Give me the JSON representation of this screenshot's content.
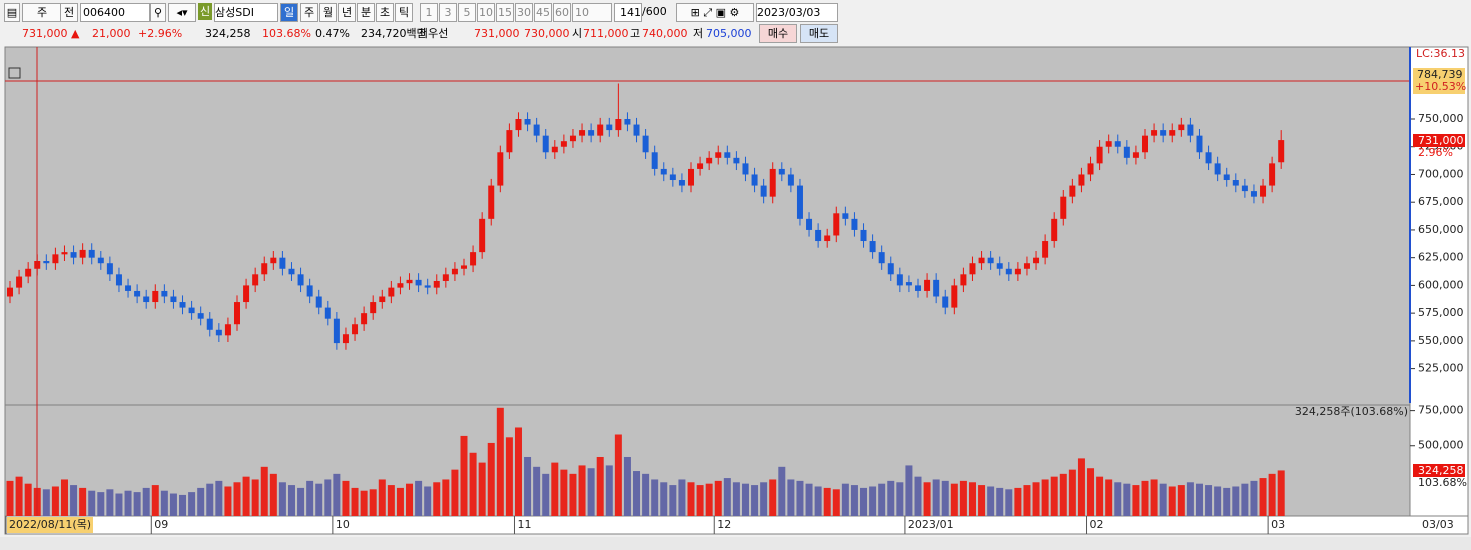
{
  "toolbar": {
    "row1": [
      "주",
      "전",
      "006400",
      "삼성SDI",
      "일",
      "주",
      "월",
      "년",
      "분",
      "초",
      "틱",
      "1",
      "3",
      "5",
      "10",
      "15",
      "30",
      "45",
      "60",
      "10",
      "141",
      "/600",
      "2023/03/03"
    ],
    "row2": [
      "731,000 ▲",
      "21,000",
      "+2.96%",
      "324,258",
      "103.68%",
      "0.47%",
      "234,720백만",
      "최우선",
      "731,000",
      "730,000",
      "시",
      "711,000",
      "고",
      "740,000",
      "저",
      "705,000",
      "매수",
      "매도"
    ]
  },
  "chart_data": {
    "type": "candlestick",
    "categories": [
      "2022/08/11(목)",
      null,
      null,
      null,
      null,
      null,
      null,
      null,
      null,
      null,
      null,
      null,
      null,
      null,
      null,
      null,
      "09",
      null,
      null,
      null,
      null,
      null,
      null,
      null,
      null,
      null,
      null,
      null,
      null,
      null,
      null,
      null,
      null,
      null,
      null,
      null,
      "10",
      null,
      null,
      null,
      null,
      null,
      null,
      null,
      null,
      null,
      null,
      null,
      null,
      null,
      null,
      null,
      null,
      null,
      null,
      null,
      "11",
      null,
      null,
      null,
      null,
      null,
      null,
      null,
      null,
      null,
      null,
      null,
      null,
      null,
      null,
      null,
      null,
      null,
      null,
      null,
      null,
      null,
      "12",
      null,
      null,
      null,
      null,
      null,
      null,
      null,
      null,
      null,
      null,
      null,
      null,
      null,
      null,
      null,
      null,
      null,
      null,
      null,
      null,
      "2023/01",
      null,
      null,
      null,
      null,
      null,
      null,
      null,
      null,
      null,
      null,
      null,
      null,
      null,
      null,
      null,
      null,
      null,
      null,
      null,
      "02",
      null,
      null,
      null,
      null,
      null,
      null,
      null,
      null,
      null,
      null,
      null,
      null,
      null,
      null,
      null,
      null,
      null,
      null,
      null,
      "03",
      null
    ],
    "series": [
      {
        "open": [
          590000,
          598000,
          608000,
          615000,
          622000,
          620000,
          628000,
          630000,
          625000,
          632000,
          625000,
          620000,
          610000,
          600000,
          595000,
          590000,
          585000,
          595000,
          590000,
          585000,
          580000,
          575000,
          570000,
          560000,
          555000,
          565000,
          585000,
          600000,
          610000,
          620000,
          625000,
          615000,
          610000,
          600000,
          590000,
          580000,
          570000,
          548000,
          556000,
          565000,
          575000,
          585000,
          590000,
          598000,
          602000,
          605000,
          600000,
          598000,
          604000,
          610000,
          615000,
          618000,
          630000,
          660000,
          690000,
          720000,
          740000,
          750000,
          745000,
          735000,
          720000,
          725000,
          730000,
          735000,
          740000,
          735000,
          745000,
          740000,
          750000,
          745000,
          735000,
          720000,
          705000,
          700000,
          695000,
          690000,
          705000,
          710000,
          715000,
          720000,
          715000,
          710000,
          700000,
          690000,
          680000,
          705000,
          700000,
          690000,
          660000,
          650000,
          640000,
          645000,
          665000,
          660000,
          650000,
          640000,
          630000,
          620000,
          610000,
          603000,
          600000,
          595000,
          605000,
          590000,
          580000,
          600000,
          610000,
          620000,
          625000,
          620000,
          615000,
          610000,
          615000,
          620000,
          625000,
          640000,
          660000,
          680000,
          690000,
          700000,
          710000,
          725000,
          730000,
          725000,
          715000,
          720000,
          735000,
          740000,
          735000,
          740000,
          745000,
          735000,
          720000,
          710000,
          700000,
          695000,
          690000,
          685000,
          680000,
          690000,
          711000
        ],
        "high": [
          604000,
          614000,
          621000,
          628000,
          628000,
          634000,
          636000,
          636000,
          638000,
          638000,
          631000,
          626000,
          616000,
          606000,
          601000,
          596000,
          601000,
          601000,
          596000,
          591000,
          586000,
          581000,
          576000,
          566000,
          571000,
          591000,
          606000,
          616000,
          626000,
          631000,
          631000,
          621000,
          616000,
          606000,
          596000,
          586000,
          576000,
          562000,
          571000,
          581000,
          591000,
          596000,
          604000,
          608000,
          611000,
          611000,
          606000,
          610000,
          616000,
          621000,
          624000,
          636000,
          666000,
          696000,
          726000,
          746000,
          756000,
          756000,
          751000,
          741000,
          731000,
          736000,
          741000,
          746000,
          746000,
          751000,
          751000,
          782000,
          756000,
          751000,
          741000,
          726000,
          711000,
          706000,
          701000,
          711000,
          716000,
          721000,
          726000,
          726000,
          721000,
          716000,
          706000,
          696000,
          711000,
          711000,
          706000,
          696000,
          666000,
          656000,
          651000,
          671000,
          671000,
          666000,
          656000,
          646000,
          636000,
          626000,
          616000,
          609000,
          606000,
          611000,
          611000,
          596000,
          606000,
          616000,
          626000,
          631000,
          631000,
          626000,
          621000,
          621000,
          626000,
          631000,
          646000,
          666000,
          686000,
          696000,
          706000,
          716000,
          731000,
          736000,
          736000,
          731000,
          726000,
          741000,
          746000,
          746000,
          746000,
          751000,
          751000,
          741000,
          726000,
          716000,
          706000,
          701000,
          696000,
          691000,
          696000,
          716000,
          740000
        ],
        "low": [
          584000,
          592000,
          602000,
          609000,
          614000,
          614000,
          622000,
          619000,
          619000,
          619000,
          614000,
          604000,
          594000,
          589000,
          584000,
          579000,
          579000,
          584000,
          579000,
          574000,
          569000,
          564000,
          554000,
          549000,
          549000,
          559000,
          579000,
          594000,
          604000,
          614000,
          609000,
          604000,
          594000,
          584000,
          574000,
          564000,
          542000,
          542000,
          550000,
          559000,
          569000,
          579000,
          584000,
          592000,
          596000,
          594000,
          592000,
          592000,
          598000,
          604000,
          609000,
          612000,
          624000,
          654000,
          684000,
          714000,
          734000,
          739000,
          729000,
          714000,
          714000,
          719000,
          724000,
          729000,
          729000,
          729000,
          734000,
          734000,
          739000,
          729000,
          714000,
          699000,
          694000,
          689000,
          684000,
          684000,
          699000,
          704000,
          709000,
          709000,
          704000,
          694000,
          684000,
          674000,
          674000,
          694000,
          684000,
          654000,
          644000,
          634000,
          634000,
          639000,
          654000,
          644000,
          634000,
          624000,
          614000,
          604000,
          594000,
          594000,
          589000,
          589000,
          584000,
          574000,
          574000,
          594000,
          604000,
          614000,
          614000,
          609000,
          604000,
          604000,
          609000,
          614000,
          619000,
          634000,
          654000,
          674000,
          684000,
          694000,
          704000,
          719000,
          719000,
          709000,
          709000,
          714000,
          729000,
          729000,
          729000,
          734000,
          729000,
          714000,
          704000,
          694000,
          689000,
          684000,
          679000,
          674000,
          674000,
          684000,
          705000
        ],
        "close": [
          598000,
          608000,
          615000,
          622000,
          620000,
          628000,
          630000,
          625000,
          632000,
          625000,
          620000,
          610000,
          600000,
          595000,
          590000,
          585000,
          595000,
          590000,
          585000,
          580000,
          575000,
          570000,
          560000,
          555000,
          565000,
          585000,
          600000,
          610000,
          620000,
          625000,
          615000,
          610000,
          600000,
          590000,
          580000,
          570000,
          548000,
          556000,
          565000,
          575000,
          585000,
          590000,
          598000,
          602000,
          605000,
          600000,
          598000,
          604000,
          610000,
          615000,
          618000,
          630000,
          660000,
          690000,
          720000,
          740000,
          750000,
          745000,
          735000,
          720000,
          725000,
          730000,
          735000,
          740000,
          735000,
          745000,
          740000,
          750000,
          745000,
          735000,
          720000,
          705000,
          700000,
          695000,
          690000,
          705000,
          710000,
          715000,
          720000,
          715000,
          710000,
          700000,
          690000,
          680000,
          705000,
          700000,
          690000,
          660000,
          650000,
          640000,
          645000,
          665000,
          660000,
          650000,
          640000,
          630000,
          620000,
          610000,
          600000,
          600000,
          595000,
          605000,
          590000,
          580000,
          600000,
          610000,
          620000,
          625000,
          620000,
          615000,
          610000,
          615000,
          620000,
          625000,
          640000,
          660000,
          680000,
          690000,
          700000,
          710000,
          725000,
          730000,
          725000,
          715000,
          720000,
          735000,
          740000,
          735000,
          740000,
          745000,
          735000,
          720000,
          710000,
          700000,
          695000,
          690000,
          685000,
          680000,
          690000,
          710000,
          731000
        ],
        "volume": [
          250000,
          280000,
          230000,
          200000,
          190000,
          210000,
          260000,
          220000,
          200000,
          180000,
          170000,
          190000,
          160000,
          180000,
          170000,
          200000,
          220000,
          180000,
          160000,
          150000,
          170000,
          200000,
          230000,
          250000,
          210000,
          240000,
          280000,
          260000,
          350000,
          300000,
          240000,
          220000,
          200000,
          250000,
          230000,
          260000,
          300000,
          250000,
          200000,
          180000,
          190000,
          260000,
          220000,
          200000,
          230000,
          250000,
          210000,
          240000,
          260000,
          330000,
          570000,
          450000,
          380000,
          520000,
          770000,
          560000,
          630000,
          420000,
          350000,
          300000,
          380000,
          330000,
          300000,
          360000,
          340000,
          420000,
          360000,
          580000,
          420000,
          320000,
          300000,
          260000,
          240000,
          220000,
          260000,
          240000,
          220000,
          230000,
          250000,
          270000,
          240000,
          230000,
          220000,
          240000,
          260000,
          350000,
          260000,
          250000,
          230000,
          210000,
          200000,
          190000,
          230000,
          220000,
          200000,
          210000,
          230000,
          250000,
          240000,
          360000,
          280000,
          240000,
          260000,
          250000,
          230000,
          250000,
          240000,
          220000,
          210000,
          200000,
          190000,
          200000,
          220000,
          240000,
          260000,
          280000,
          300000,
          330000,
          410000,
          340000,
          280000,
          260000,
          240000,
          230000,
          220000,
          250000,
          260000,
          230000,
          210000,
          220000,
          240000,
          230000,
          220000,
          210000,
          200000,
          210000,
          230000,
          250000,
          270000,
          300000,
          324258
        ]
      }
    ],
    "up_color": "#e8150e",
    "down_color": "#1a5fd6",
    "volume_up_color": "#e8261c",
    "volume_down_color": "#6367a6",
    "ylim": [
      494000,
      814000
    ],
    "yticks": [
      {
        "value": 525000,
        "label": "525,000"
      },
      {
        "value": 550000,
        "label": "550,000"
      },
      {
        "value": 575000,
        "label": "575,000"
      },
      {
        "value": 600000,
        "label": "600,000"
      },
      {
        "value": 625000,
        "label": "625,000"
      },
      {
        "value": 650000,
        "label": "650,000"
      },
      {
        "value": 675000,
        "label": "675,000"
      },
      {
        "value": 700000,
        "label": "700,000"
      },
      {
        "value": 725000,
        "label": "725,000"
      },
      {
        "value": 750000,
        "label": "750,000"
      }
    ],
    "volume_ylim": [
      0,
      790000
    ],
    "volume_yticks": [
      {
        "value": 500000,
        "label": "500,000"
      },
      {
        "value": 750000,
        "label": "750,000"
      }
    ],
    "annotations": {
      "lc": "LC:36.13",
      "cursor_price": "784,739",
      "cursor_pct": "+10.53%",
      "last_price": "731,000",
      "last_pct": "2.96%",
      "volume_note": "324,258주(103.68%)",
      "last_volume": "324,258",
      "volume_pct": "103.68%",
      "last_date": "03/03"
    }
  }
}
